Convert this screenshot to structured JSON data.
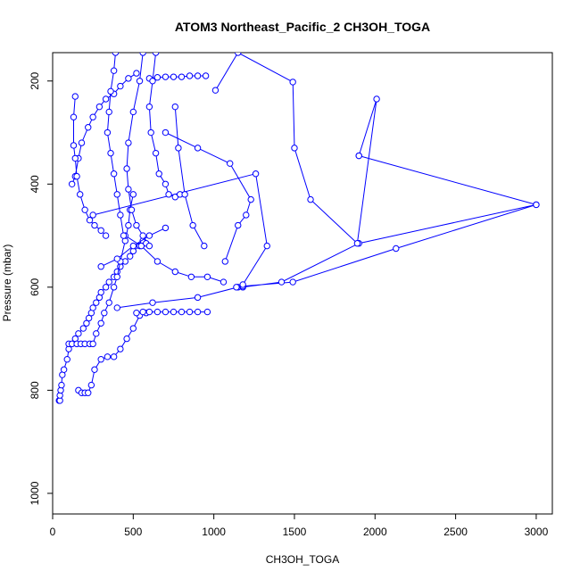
{
  "chart_data": {
    "type": "line",
    "title": "ATOM3 Northeast_Pacific_2 CH3OH_TOGA",
    "xlabel": "CH3OH_TOGA",
    "ylabel": "Pressure (mbar)",
    "xlim": [
      0,
      3100
    ],
    "ylim": [
      1040,
      145
    ],
    "y_reversed": true,
    "x_ticks": [
      0,
      500,
      1000,
      1500,
      2000,
      2500,
      3000
    ],
    "y_ticks": [
      200,
      400,
      600,
      800,
      1000
    ],
    "grid": false,
    "legend": "none",
    "marker": "open-circle",
    "series_color": "#0000ff",
    "series": [
      {
        "x": [
          40,
          45,
          45,
          50,
          55,
          60,
          70,
          90,
          100,
          140,
          160,
          190,
          210,
          225,
          240,
          250,
          270,
          290,
          300,
          330,
          350,
          380,
          400,
          420,
          450,
          480,
          500,
          540,
          560
        ],
        "y": [
          820,
          820,
          810,
          800,
          790,
          770,
          760,
          740,
          720,
          700,
          690,
          680,
          670,
          660,
          650,
          640,
          630,
          620,
          610,
          600,
          590,
          580,
          570,
          560,
          550,
          540,
          530,
          520,
          510
        ]
      },
      {
        "x": [
          100,
          120,
          150,
          175,
          200,
          230,
          250,
          270,
          300,
          320,
          350,
          380,
          400,
          420,
          450,
          470,
          480,
          500
        ],
        "y": [
          710,
          710,
          710,
          710,
          710,
          710,
          710,
          690,
          670,
          650,
          630,
          600,
          580,
          550,
          510,
          480,
          450,
          420
        ]
      },
      {
        "x": [
          160,
          180,
          200,
          220,
          240,
          260,
          300,
          340,
          380,
          420,
          460,
          500,
          540,
          580
        ],
        "y": [
          800,
          805,
          805,
          805,
          790,
          760,
          740,
          735,
          735,
          720,
          700,
          680,
          655,
          650
        ]
      },
      {
        "x": [
          520,
          560,
          600,
          650,
          700,
          750,
          800,
          850,
          900,
          960
        ],
        "y": [
          650,
          648,
          648,
          648,
          648,
          648,
          648,
          648,
          648,
          648
        ]
      },
      {
        "x": [
          400,
          620,
          900,
          1150,
          1180,
          1420,
          1900,
          3000,
          2130,
          1490,
          1180
        ],
        "y": [
          640,
          630,
          620,
          600,
          600,
          590,
          515,
          440,
          525,
          590,
          598
        ]
      },
      {
        "x": [
          120,
          140,
          160,
          180,
          220,
          250,
          290,
          330,
          380,
          420,
          470,
          520
        ],
        "y": [
          400,
          385,
          350,
          320,
          290,
          270,
          250,
          235,
          225,
          210,
          195,
          185
        ]
      },
      {
        "x": [
          140,
          130,
          130,
          140,
          150,
          170,
          200,
          230,
          260,
          300,
          330
        ],
        "y": [
          230,
          270,
          325,
          350,
          385,
          420,
          450,
          470,
          480,
          490,
          500
        ]
      },
      {
        "x": [
          600,
          650,
          700,
          750,
          800,
          850,
          900,
          950
        ],
        "y": [
          195,
          193,
          192,
          192,
          192,
          190,
          190,
          190
        ]
      },
      {
        "x": [
          1010,
          1150,
          1490,
          1500,
          1600,
          1890,
          2010,
          1900
        ],
        "y": [
          218,
          145,
          202,
          330,
          430,
          515,
          235,
          345
        ]
      },
      {
        "x": [
          1900,
          3000
        ],
        "y": [
          345,
          440
        ]
      },
      {
        "x": [
          250,
          1260,
          1330,
          1180,
          1140
        ],
        "y": [
          460,
          380,
          520,
          595,
          600
        ]
      },
      {
        "x": [
          700,
          900,
          1100,
          1230,
          1200,
          1150,
          1070
        ],
        "y": [
          300,
          330,
          360,
          430,
          460,
          480,
          550
        ]
      },
      {
        "x": [
          450,
          550,
          650,
          760,
          860,
          960,
          1060
        ],
        "y": [
          500,
          520,
          550,
          570,
          580,
          580,
          590
        ]
      },
      {
        "x": [
          300,
          400,
          500,
          600,
          700
        ],
        "y": [
          560,
          545,
          520,
          500,
          485
        ]
      },
      {
        "x": [
          560,
          540,
          500,
          470,
          460,
          470,
          490,
          520,
          560,
          580,
          600
        ],
        "y": [
          145,
          200,
          260,
          320,
          370,
          410,
          450,
          480,
          500,
          515,
          520
        ]
      },
      {
        "x": [
          640,
          620,
          600,
          610,
          640,
          660,
          700,
          720,
          760,
          790
        ],
        "y": [
          145,
          200,
          250,
          300,
          340,
          380,
          400,
          420,
          425,
          420
        ]
      },
      {
        "x": [
          390,
          380,
          360,
          350,
          340,
          360,
          380,
          400,
          420,
          440
        ],
        "y": [
          145,
          180,
          220,
          260,
          300,
          340,
          380,
          420,
          460,
          500
        ]
      },
      {
        "x": [
          760,
          780,
          820,
          870,
          940
        ],
        "y": [
          250,
          330,
          420,
          480,
          520
        ]
      }
    ]
  }
}
